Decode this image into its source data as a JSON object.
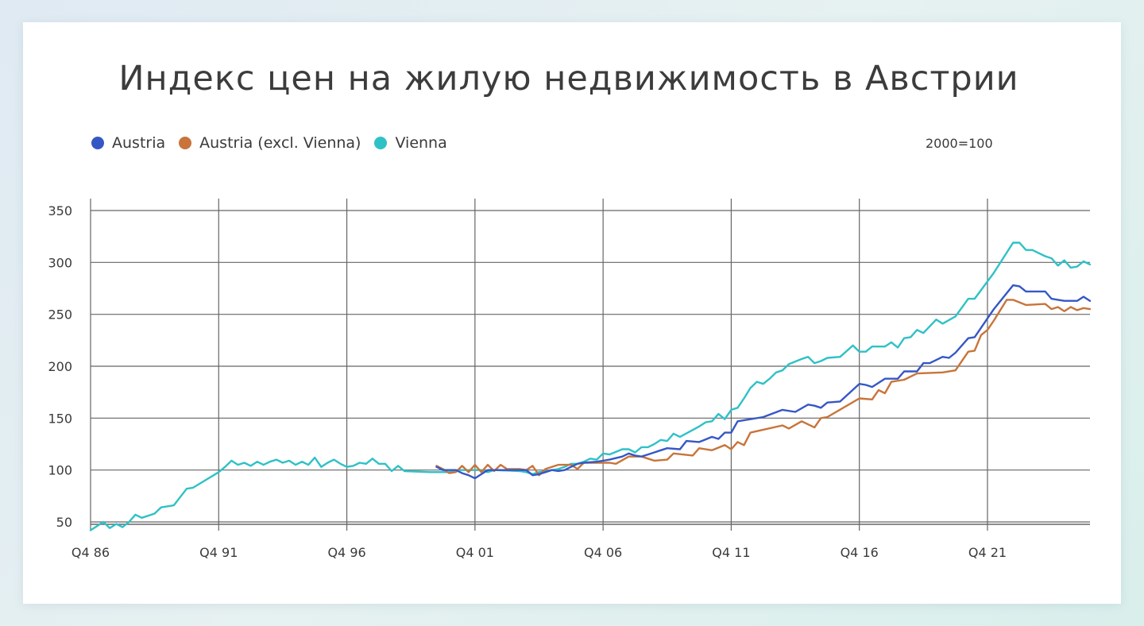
{
  "title": "Индекс цен на жилую недвижимость в Австрии",
  "unit_note": "2000=100",
  "colors": {
    "austria": "#3557c6",
    "austria_excl_vienna": "#c8743a",
    "vienna": "#2fc1c6",
    "grid": "#666666"
  },
  "chart_data": {
    "type": "line",
    "title": "Индекс цен на жилую недвижимость в Австрии",
    "xlabel": "",
    "ylabel": "",
    "x_ticks": [
      "Q4 86",
      "Q4 91",
      "Q4 96",
      "Q4 01",
      "Q4 06",
      "Q4 11",
      "Q4 16",
      "Q4 21"
    ],
    "y_ticks": [
      50,
      100,
      150,
      200,
      250,
      300,
      350
    ],
    "xlim": [
      1986.75,
      2025.75
    ],
    "ylim": [
      40,
      355
    ],
    "grid": true,
    "legend_position": "top-left",
    "series": [
      {
        "name": "Austria",
        "color_key": "austria",
        "points": [
          [
            2000.25,
            103
          ],
          [
            2000.5,
            100
          ],
          [
            2000.75,
            100
          ],
          [
            2001.0,
            100
          ],
          [
            2001.25,
            97
          ],
          [
            2001.5,
            95
          ],
          [
            2001.75,
            92
          ],
          [
            2002.0,
            96
          ],
          [
            2002.25,
            100
          ],
          [
            2002.5,
            100
          ],
          [
            2002.75,
            100
          ],
          [
            2003.0,
            100
          ],
          [
            2003.25,
            100
          ],
          [
            2003.5,
            100
          ],
          [
            2003.75,
            100
          ],
          [
            2004.0,
            95
          ],
          [
            2004.25,
            96
          ],
          [
            2004.5,
            98
          ],
          [
            2004.75,
            100
          ],
          [
            2005.0,
            99
          ],
          [
            2005.25,
            100
          ],
          [
            2005.5,
            103
          ],
          [
            2005.75,
            106
          ],
          [
            2006.0,
            107
          ],
          [
            2006.5,
            108
          ],
          [
            2007.0,
            110
          ],
          [
            2007.5,
            113
          ],
          [
            2007.75,
            116
          ],
          [
            2008.0,
            114
          ],
          [
            2008.25,
            113
          ],
          [
            2008.5,
            115
          ],
          [
            2008.75,
            117
          ],
          [
            2009.0,
            119
          ],
          [
            2009.25,
            121
          ],
          [
            2009.75,
            120
          ],
          [
            2010.0,
            128
          ],
          [
            2010.5,
            127
          ],
          [
            2011.0,
            132
          ],
          [
            2011.25,
            130
          ],
          [
            2011.5,
            136
          ],
          [
            2011.75,
            136
          ],
          [
            2012.0,
            147
          ],
          [
            2013.0,
            151
          ],
          [
            2013.75,
            158
          ],
          [
            2014.25,
            156
          ],
          [
            2014.75,
            163
          ],
          [
            2015.0,
            162
          ],
          [
            2015.25,
            160
          ],
          [
            2015.5,
            165
          ],
          [
            2016.0,
            166
          ],
          [
            2016.75,
            183
          ],
          [
            2017.0,
            182
          ],
          [
            2017.25,
            180
          ],
          [
            2017.75,
            188
          ],
          [
            2018.25,
            188
          ],
          [
            2018.5,
            195
          ],
          [
            2019.0,
            195
          ],
          [
            2019.25,
            203
          ],
          [
            2019.5,
            203
          ],
          [
            2020.0,
            209
          ],
          [
            2020.25,
            208
          ],
          [
            2020.5,
            213
          ],
          [
            2021.0,
            227
          ],
          [
            2021.25,
            228
          ],
          [
            2022.0,
            255
          ],
          [
            2022.75,
            278
          ],
          [
            2023.0,
            277
          ],
          [
            2023.25,
            272
          ],
          [
            2024.0,
            272
          ],
          [
            2024.25,
            265
          ],
          [
            2024.5,
            264
          ],
          [
            2024.75,
            263
          ],
          [
            2025.25,
            263
          ],
          [
            2025.5,
            267
          ],
          [
            2025.75,
            263
          ]
        ]
      },
      {
        "name": "Austria (excl. Vienna)",
        "color_key": "austria_excl_vienna",
        "points": [
          [
            2000.25,
            104
          ],
          [
            2000.5,
            101
          ],
          [
            2000.75,
            97
          ],
          [
            2001.0,
            98
          ],
          [
            2001.25,
            104
          ],
          [
            2001.5,
            98
          ],
          [
            2001.75,
            105
          ],
          [
            2002.0,
            98
          ],
          [
            2002.25,
            105
          ],
          [
            2002.5,
            99
          ],
          [
            2002.75,
            105
          ],
          [
            2003.0,
            101
          ],
          [
            2003.25,
            101
          ],
          [
            2003.5,
            101
          ],
          [
            2003.75,
            100
          ],
          [
            2004.0,
            104
          ],
          [
            2004.25,
            95
          ],
          [
            2004.5,
            101
          ],
          [
            2004.75,
            103
          ],
          [
            2005.0,
            105
          ],
          [
            2005.5,
            105
          ],
          [
            2005.75,
            101
          ],
          [
            2006.0,
            107
          ],
          [
            2006.5,
            107
          ],
          [
            2007.0,
            107
          ],
          [
            2007.25,
            106
          ],
          [
            2007.75,
            113
          ],
          [
            2008.25,
            113
          ],
          [
            2008.5,
            111
          ],
          [
            2008.75,
            109
          ],
          [
            2009.25,
            110
          ],
          [
            2009.5,
            116
          ],
          [
            2010.25,
            114
          ],
          [
            2010.5,
            121
          ],
          [
            2011.0,
            119
          ],
          [
            2011.5,
            124
          ],
          [
            2011.75,
            120
          ],
          [
            2012.0,
            127
          ],
          [
            2012.25,
            124
          ],
          [
            2012.5,
            136
          ],
          [
            2013.75,
            143
          ],
          [
            2014.0,
            140
          ],
          [
            2014.5,
            147
          ],
          [
            2014.75,
            144
          ],
          [
            2015.0,
            141
          ],
          [
            2015.25,
            150
          ],
          [
            2015.5,
            151
          ],
          [
            2016.75,
            169
          ],
          [
            2017.25,
            168
          ],
          [
            2017.5,
            177
          ],
          [
            2017.75,
            174
          ],
          [
            2018.0,
            185
          ],
          [
            2018.5,
            187
          ],
          [
            2019.0,
            193
          ],
          [
            2020.0,
            194
          ],
          [
            2020.5,
            196
          ],
          [
            2021.0,
            214
          ],
          [
            2021.25,
            215
          ],
          [
            2021.5,
            230
          ],
          [
            2021.75,
            235
          ],
          [
            2022.0,
            244
          ],
          [
            2022.5,
            264
          ],
          [
            2022.75,
            264
          ],
          [
            2023.25,
            259
          ],
          [
            2024.0,
            260
          ],
          [
            2024.25,
            255
          ],
          [
            2024.5,
            257
          ],
          [
            2024.75,
            253
          ],
          [
            2025.0,
            257
          ],
          [
            2025.25,
            254
          ],
          [
            2025.5,
            256
          ],
          [
            2025.75,
            255
          ]
        ]
      },
      {
        "name": "Vienna",
        "color_key": "vienna",
        "points": [
          [
            1986.75,
            42
          ],
          [
            1987.0,
            46
          ],
          [
            1987.25,
            50
          ],
          [
            1987.5,
            44
          ],
          [
            1987.75,
            48
          ],
          [
            1988.0,
            45
          ],
          [
            1988.25,
            50
          ],
          [
            1988.5,
            57
          ],
          [
            1988.75,
            54
          ],
          [
            1989.25,
            58
          ],
          [
            1989.5,
            64
          ],
          [
            1990.0,
            66
          ],
          [
            1990.5,
            82
          ],
          [
            1990.75,
            83
          ],
          [
            1991.75,
            98
          ],
          [
            1992.0,
            103
          ],
          [
            1992.25,
            109
          ],
          [
            1992.5,
            105
          ],
          [
            1992.75,
            107
          ],
          [
            1993.0,
            104
          ],
          [
            1993.25,
            108
          ],
          [
            1993.5,
            105
          ],
          [
            1993.75,
            108
          ],
          [
            1994.0,
            110
          ],
          [
            1994.25,
            107
          ],
          [
            1994.5,
            109
          ],
          [
            1994.75,
            105
          ],
          [
            1995.0,
            108
          ],
          [
            1995.25,
            105
          ],
          [
            1995.5,
            112
          ],
          [
            1995.75,
            103
          ],
          [
            1996.0,
            107
          ],
          [
            1996.25,
            110
          ],
          [
            1996.5,
            106
          ],
          [
            1996.75,
            103
          ],
          [
            1997.0,
            104
          ],
          [
            1997.25,
            107
          ],
          [
            1997.5,
            106
          ],
          [
            1997.75,
            111
          ],
          [
            1998.0,
            106
          ],
          [
            1998.25,
            106
          ],
          [
            1998.5,
            99
          ],
          [
            1998.75,
            104
          ],
          [
            1999.0,
            99
          ],
          [
            2000.0,
            98
          ],
          [
            2000.75,
            98
          ],
          [
            2001.0,
            100
          ],
          [
            2002.0,
            100
          ],
          [
            2002.25,
            98
          ],
          [
            2002.5,
            100
          ],
          [
            2003.5,
            99
          ],
          [
            2003.75,
            98
          ],
          [
            2004.0,
            96
          ],
          [
            2004.25,
            98
          ],
          [
            2004.5,
            99
          ],
          [
            2005.0,
            101
          ],
          [
            2005.25,
            103
          ],
          [
            2005.5,
            106
          ],
          [
            2005.75,
            106
          ],
          [
            2006.0,
            108
          ],
          [
            2006.25,
            111
          ],
          [
            2006.5,
            110
          ],
          [
            2006.75,
            116
          ],
          [
            2007.0,
            115
          ],
          [
            2007.5,
            120
          ],
          [
            2007.75,
            120
          ],
          [
            2008.0,
            117
          ],
          [
            2008.25,
            122
          ],
          [
            2008.5,
            122
          ],
          [
            2008.75,
            125
          ],
          [
            2009.0,
            129
          ],
          [
            2009.25,
            128
          ],
          [
            2009.5,
            135
          ],
          [
            2009.75,
            132
          ],
          [
            2010.5,
            142
          ],
          [
            2010.75,
            146
          ],
          [
            2011.0,
            147
          ],
          [
            2011.25,
            154
          ],
          [
            2011.5,
            149
          ],
          [
            2011.75,
            158
          ],
          [
            2012.0,
            160
          ],
          [
            2012.25,
            169
          ],
          [
            2012.5,
            179
          ],
          [
            2012.75,
            185
          ],
          [
            2013.0,
            183
          ],
          [
            2013.25,
            188
          ],
          [
            2013.5,
            194
          ],
          [
            2013.75,
            196
          ],
          [
            2014.0,
            202
          ],
          [
            2014.5,
            207
          ],
          [
            2014.75,
            209
          ],
          [
            2015.0,
            203
          ],
          [
            2015.25,
            205
          ],
          [
            2015.5,
            208
          ],
          [
            2016.0,
            209
          ],
          [
            2016.5,
            220
          ],
          [
            2016.75,
            214
          ],
          [
            2017.0,
            214
          ],
          [
            2017.25,
            219
          ],
          [
            2017.5,
            219
          ],
          [
            2017.75,
            219
          ],
          [
            2018.0,
            223
          ],
          [
            2018.25,
            218
          ],
          [
            2018.5,
            227
          ],
          [
            2018.75,
            228
          ],
          [
            2019.0,
            235
          ],
          [
            2019.25,
            232
          ],
          [
            2019.75,
            245
          ],
          [
            2020.0,
            241
          ],
          [
            2020.5,
            248
          ],
          [
            2021.0,
            265
          ],
          [
            2021.25,
            265
          ],
          [
            2022.0,
            290
          ],
          [
            2022.75,
            319
          ],
          [
            2023.0,
            319
          ],
          [
            2023.25,
            312
          ],
          [
            2023.5,
            312
          ],
          [
            2024.0,
            306
          ],
          [
            2024.25,
            304
          ],
          [
            2024.5,
            297
          ],
          [
            2024.75,
            302
          ],
          [
            2025.0,
            295
          ],
          [
            2025.25,
            296
          ],
          [
            2025.5,
            301
          ],
          [
            2025.75,
            298
          ]
        ]
      }
    ]
  }
}
